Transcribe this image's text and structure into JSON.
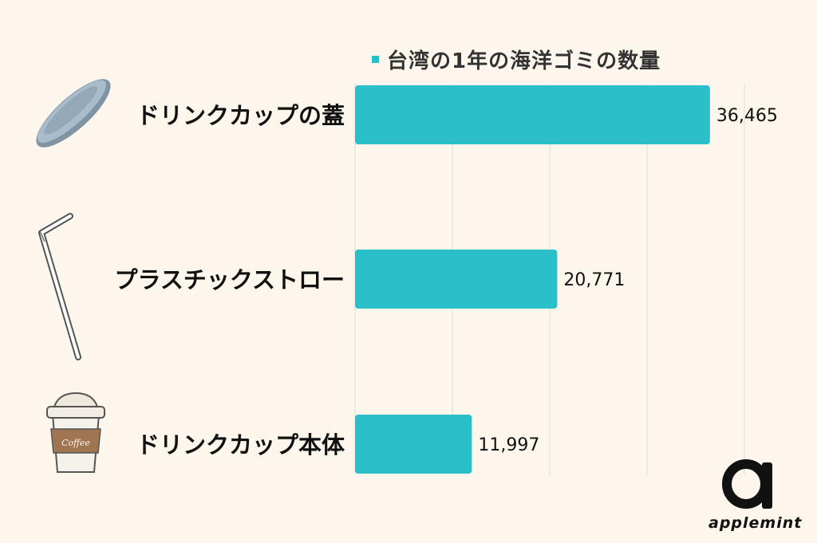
{
  "chart_data": {
    "type": "bar",
    "orientation": "horizontal",
    "categories": [
      "ドリンクカップの蓋",
      "プラスチックストロー",
      "ドリンクカップ本体"
    ],
    "series": [
      {
        "name": "台湾の1年の海洋ゴミの数量",
        "values": [
          36465,
          20771,
          11997
        ]
      }
    ],
    "value_labels": [
      "36,465",
      "20,771",
      "11,997"
    ],
    "xlim": [
      0,
      40000
    ],
    "grid": true,
    "legend_position": "top",
    "bar_color": "#2bbfca",
    "category_icons": [
      "cup-lid-icon",
      "straw-icon",
      "coffee-cup-icon"
    ],
    "cup_label": "Coffee"
  },
  "logo": {
    "text": "applemint"
  },
  "colors": {
    "background": "#fdf6ec",
    "bar": "#2bbfca",
    "grid": "#dddddd",
    "text": "#111111"
  }
}
